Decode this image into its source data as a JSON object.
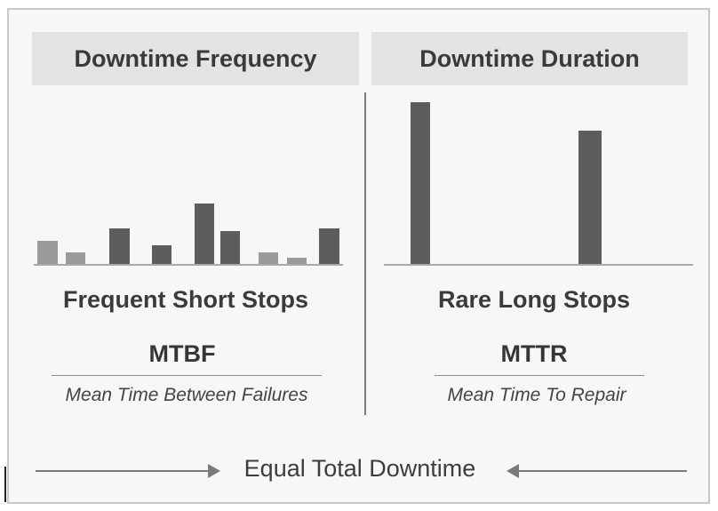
{
  "panels": {
    "left": {
      "header": "Downtime Frequency",
      "title": "Frequent Short Stops",
      "metric": "MTBF",
      "description": "Mean Time Between Failures",
      "bars": [
        {
          "value": 26,
          "shade": "light"
        },
        {
          "value": 13,
          "shade": "light"
        },
        {
          "value": 40,
          "shade": "dark"
        },
        {
          "value": 21,
          "shade": "dark"
        },
        {
          "value": 68,
          "shade": "dark"
        },
        {
          "value": 37,
          "shade": "dark"
        },
        {
          "value": 13,
          "shade": "light"
        },
        {
          "value": 7,
          "shade": "light"
        },
        {
          "value": 40,
          "shade": "dark"
        }
      ]
    },
    "right": {
      "header": "Downtime Duration",
      "title": "Rare Long Stops",
      "metric": "MTTR",
      "description": "Mean Time To Repair",
      "bars": [
        {
          "value": 182,
          "shade": "dark"
        },
        {
          "value": 150,
          "shade": "dark"
        }
      ]
    }
  },
  "footer": {
    "label": "Equal Total Downtime"
  },
  "colors": {
    "dark_bar": "#5d5d5d",
    "light_bar": "#9a9a9a",
    "header_bg": "#e3e3e3"
  }
}
